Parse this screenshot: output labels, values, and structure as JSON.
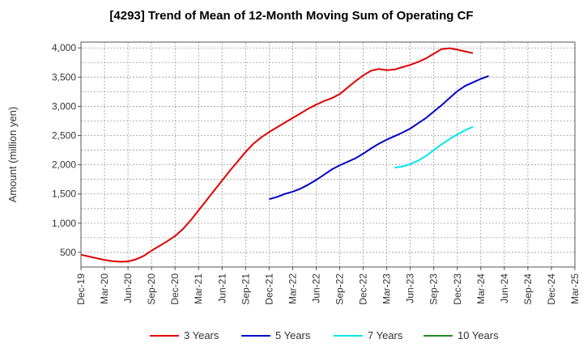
{
  "chart_data": {
    "type": "line",
    "title": "[4293]  Trend of Mean of 12-Month Moving Sum of Operating CF",
    "xlabel": "",
    "ylabel": "Amount (million yen)",
    "ylim": [
      250,
      4100
    ],
    "yticks": [
      500,
      1000,
      1500,
      2000,
      2500,
      3000,
      3500,
      4000
    ],
    "ytick_labels": [
      "500",
      "1,000",
      "1,500",
      "2,000",
      "2,500",
      "3,000",
      "3,500",
      "4,000"
    ],
    "xticks": [
      "Dec-19",
      "Mar-20",
      "Jun-20",
      "Sep-20",
      "Dec-20",
      "Mar-21",
      "Jun-21",
      "Sep-21",
      "Dec-21",
      "Mar-22",
      "Jun-22",
      "Sep-22",
      "Dec-22",
      "Mar-23",
      "Jun-23",
      "Sep-23",
      "Dec-23",
      "Mar-24",
      "Jun-24",
      "Sep-24",
      "Dec-24",
      "Mar-25"
    ],
    "grid": true,
    "legend_position": "bottom",
    "series": [
      {
        "name": "3 Years",
        "color": "#e00000",
        "start_index": 0,
        "values": [
          460,
          430,
          400,
          370,
          350,
          340,
          345,
          380,
          440,
          530,
          610,
          690,
          780,
          900,
          1050,
          1220,
          1390,
          1560,
          1730,
          1900,
          2060,
          2220,
          2360,
          2470,
          2560,
          2640,
          2720,
          2800,
          2880,
          2960,
          3030,
          3090,
          3140,
          3210,
          3320,
          3430,
          3530,
          3610,
          3640,
          3620,
          3630,
          3670,
          3710,
          3760,
          3820,
          3900,
          3980,
          3995,
          3970,
          3940,
          3910
        ]
      },
      {
        "name": "5 Years",
        "color": "#0000cc",
        "start_index": 24,
        "values": [
          1410,
          1450,
          1500,
          1540,
          1590,
          1660,
          1740,
          1830,
          1920,
          1990,
          2050,
          2110,
          2190,
          2280,
          2360,
          2430,
          2490,
          2550,
          2620,
          2710,
          2800,
          2910,
          3020,
          3140,
          3260,
          3350,
          3410,
          3470,
          3520
        ]
      },
      {
        "name": "7 Years",
        "color": "#00e5ee",
        "start_index": 40,
        "values": [
          1950,
          1970,
          2010,
          2070,
          2150,
          2250,
          2350,
          2440,
          2520,
          2590,
          2650
        ]
      },
      {
        "name": "10 Years",
        "color": "#228b22",
        "start_index": 0,
        "values": []
      }
    ]
  }
}
